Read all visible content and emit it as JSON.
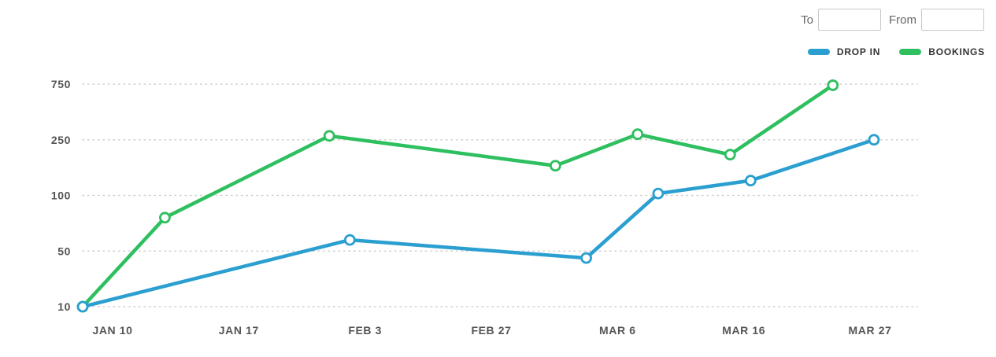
{
  "filters": {
    "to_label": "To",
    "to_value": "",
    "from_label": "From",
    "from_value": ""
  },
  "chart_data": {
    "type": "line",
    "title": "",
    "xlabel": "",
    "ylabel": "",
    "y_scale": "ordinal-ticks",
    "y_ticks": [
      10,
      50,
      100,
      250,
      750
    ],
    "x_ticks": [
      "JAN 10",
      "JAN 17",
      "FEB 3",
      "FEB 27",
      "MAR 6",
      "MAR 16",
      "MAR 27"
    ],
    "grid": true,
    "legend_position": "top-right",
    "series": [
      {
        "name": "DROP IN",
        "color": "#2a9fd0",
        "points": [
          {
            "x": "Jan 10",
            "y": 10
          },
          {
            "x": "Feb 5",
            "y": 60
          },
          {
            "x": "Feb 28",
            "y": 45
          },
          {
            "x": "Mar 7",
            "y": 105
          },
          {
            "x": "Mar 16",
            "y": 140
          },
          {
            "x": "Mar 28",
            "y": 250
          }
        ]
      },
      {
        "name": "BOOKINGS",
        "color": "#2ebf5f",
        "points": [
          {
            "x": "Jan 10",
            "y": 10
          },
          {
            "x": "Jan 18",
            "y": 80
          },
          {
            "x": "Feb 3",
            "y": 285
          },
          {
            "x": "Feb 25",
            "y": 180
          },
          {
            "x": "Mar 5",
            "y": 300
          },
          {
            "x": "Mar 14",
            "y": 210
          },
          {
            "x": "Mar 24",
            "y": 740
          }
        ]
      }
    ]
  }
}
